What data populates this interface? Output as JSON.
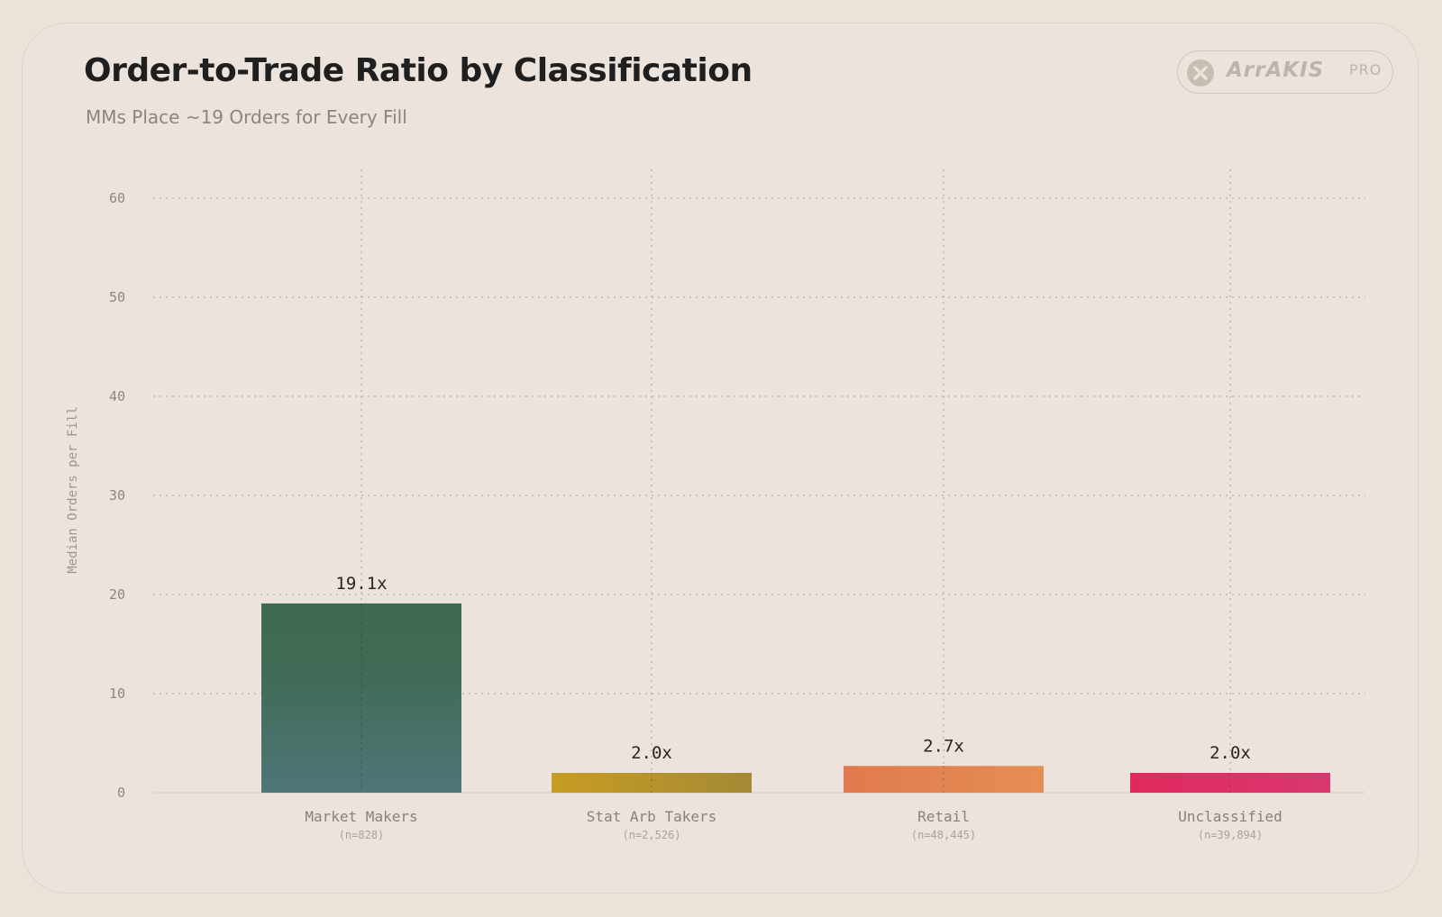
{
  "header": {
    "title": "Order-to-Trade Ratio by Classification",
    "subtitle": "MMs Place ~19 Orders for Every Fill"
  },
  "logo": {
    "word": "ArrAKIS",
    "badge": "PRO"
  },
  "colors": {
    "background": "#ece3dc",
    "market_makers": "#3f6b56",
    "stat_arb_takers": "#c49a24",
    "retail": "#e48a52",
    "unclassified": "#dc2d64"
  },
  "chart_data": {
    "type": "bar",
    "title": "Order-to-Trade Ratio by Classification",
    "subtitle": "MMs Place ~19 Orders for Every Fill",
    "ylabel": "Median Orders per Fill",
    "xlabel": "",
    "ylim": [
      0,
      60
    ],
    "yticks": [
      0,
      10,
      20,
      30,
      40,
      50,
      60
    ],
    "grid": true,
    "categories": [
      "Market Makers",
      "Stat Arb Takers",
      "Retail",
      "Unclassified"
    ],
    "sample_sizes": [
      "(n=828)",
      "(n=2,526)",
      "(n=48,445)",
      "(n=39,894)"
    ],
    "values": [
      19.1,
      2.0,
      2.7,
      2.0
    ],
    "value_labels": [
      "19.1x",
      "2.0x",
      "2.7x",
      "2.0x"
    ]
  }
}
